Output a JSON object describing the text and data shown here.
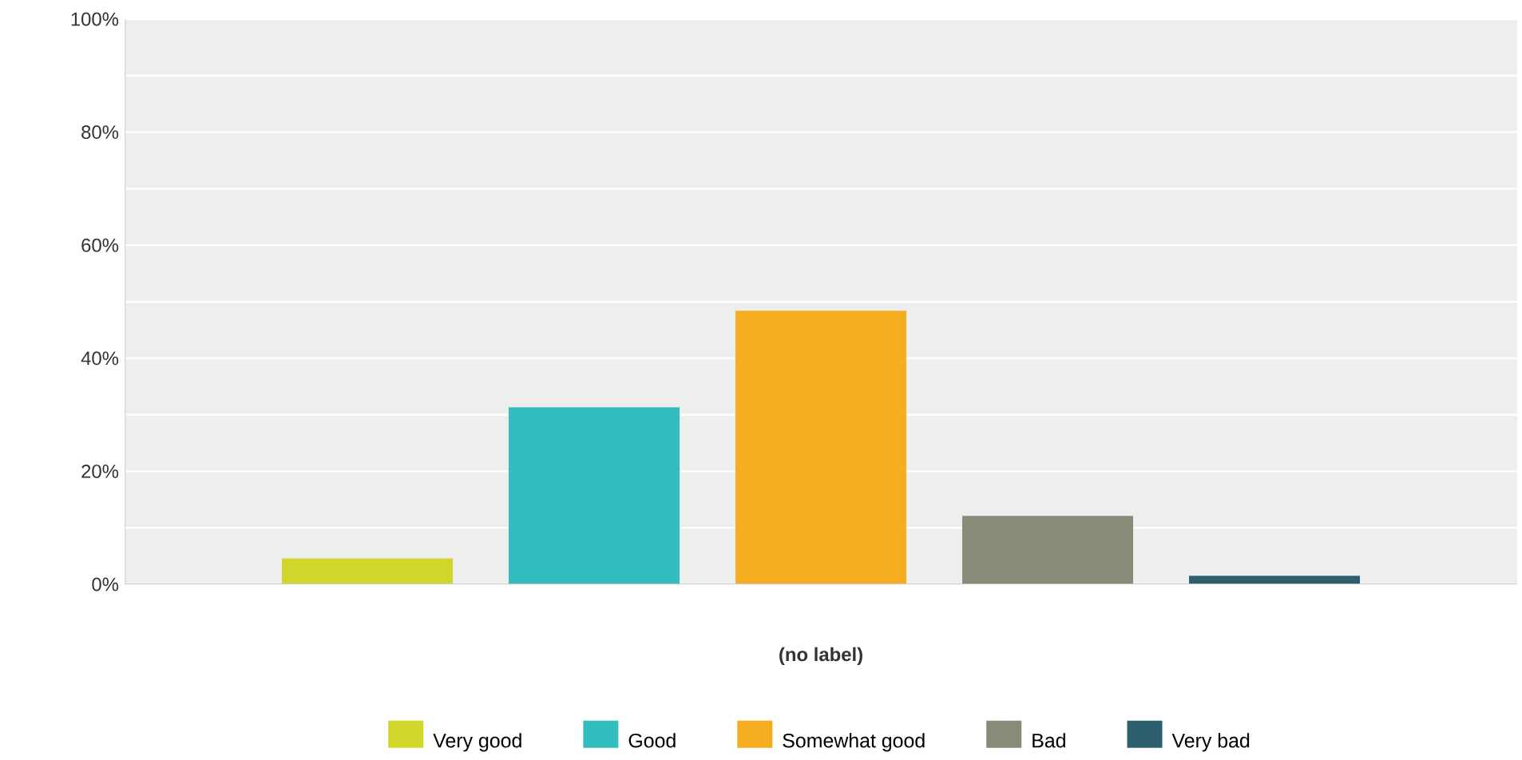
{
  "chart_data": {
    "type": "bar",
    "categories": [
      null
    ],
    "xlabel": "(no label)",
    "series": [
      {
        "name": "Very good",
        "color": "#d1d62a",
        "values": [
          4.6
        ]
      },
      {
        "name": "Good",
        "color": "#33bdbf",
        "values": [
          31.3
        ]
      },
      {
        "name": "Somewhat good",
        "color": "#f6ae20",
        "values": [
          48.4
        ]
      },
      {
        "name": "Bad",
        "color": "#898a78",
        "values": [
          12.1
        ]
      },
      {
        "name": "Very bad",
        "color": "#2d5f6c",
        "values": [
          1.5
        ]
      }
    ],
    "ylim": [
      0,
      100
    ],
    "yticks": [
      {
        "value": 0,
        "label": "0%"
      },
      {
        "value": 10,
        "label": null
      },
      {
        "value": 20,
        "label": "20%"
      },
      {
        "value": 30,
        "label": null
      },
      {
        "value": 40,
        "label": "40%"
      },
      {
        "value": 50,
        "label": null
      },
      {
        "value": 60,
        "label": "60%"
      },
      {
        "value": 70,
        "label": null
      },
      {
        "value": 80,
        "label": "80%"
      },
      {
        "value": 90,
        "label": null
      },
      {
        "value": 100,
        "label": "100%"
      }
    ],
    "grid": "y",
    "legend": "bottom"
  }
}
